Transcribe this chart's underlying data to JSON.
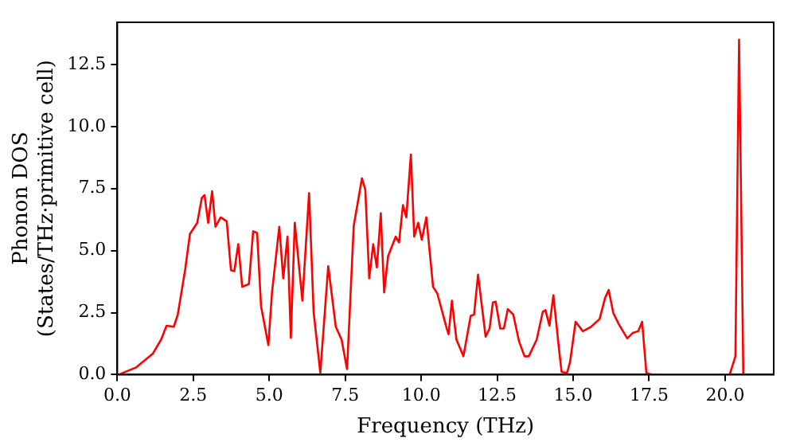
{
  "chart_data": {
    "type": "line",
    "xlabel": "Frequency (THz)",
    "ylabel": "Phonon DOS\n(States/THz·primitive cell)",
    "x": [
      0.04,
      0.62,
      1.17,
      1.44,
      1.62,
      1.86,
      1.99,
      2.23,
      2.39,
      2.63,
      2.78,
      2.87,
      2.99,
      3.12,
      3.23,
      3.4,
      3.6,
      3.74,
      3.85,
      3.98,
      4.11,
      4.33,
      4.47,
      4.6,
      4.73,
      4.97,
      5.09,
      5.33,
      5.46,
      5.6,
      5.71,
      5.84,
      6.09,
      6.31,
      6.46,
      6.68,
      6.94,
      7.19,
      7.38,
      7.56,
      7.78,
      8.05,
      8.16,
      8.29,
      8.42,
      8.54,
      8.67,
      8.78,
      8.91,
      9.16,
      9.27,
      9.4,
      9.51,
      9.66,
      9.77,
      9.9,
      10.02,
      10.17,
      10.39,
      10.53,
      10.84,
      10.9,
      11.01,
      11.16,
      11.39,
      11.63,
      11.74,
      11.87,
      12.12,
      12.25,
      12.36,
      12.45,
      12.6,
      12.72,
      12.85,
      13.03,
      13.22,
      13.4,
      13.54,
      13.8,
      14.0,
      14.09,
      14.22,
      14.35,
      14.53,
      14.62,
      14.8,
      14.9,
      15.08,
      15.32,
      15.59,
      15.87,
      16.05,
      16.17,
      16.32,
      16.5,
      16.78,
      16.96,
      17.14,
      17.27,
      17.41,
      17.6,
      20.15,
      20.34,
      20.46,
      20.6
    ],
    "series": [
      {
        "color": "#ff0000",
        "values": [
          0,
          0.29,
          0.85,
          1.41,
          1.97,
          1.93,
          2.42,
          4.21,
          5.67,
          6.12,
          7.12,
          7.24,
          6.12,
          7.39,
          5.96,
          6.34,
          6.18,
          4.21,
          4.17,
          5.26,
          3.54,
          3.65,
          5.78,
          5.71,
          2.76,
          1.19,
          3.31,
          5.96,
          3.88,
          5.56,
          1.48,
          6.12,
          2.98,
          7.31,
          2.53,
          0.07,
          4.37,
          1.93,
          1.41,
          0.22,
          6.0,
          7.91,
          7.46,
          3.88,
          5.26,
          4.32,
          6.5,
          3.31,
          4.77,
          5.56,
          5.33,
          6.83,
          6.34,
          8.87,
          5.56,
          6.12,
          5.44,
          6.34,
          3.54,
          3.27,
          1.86,
          1.63,
          2.98,
          1.41,
          0.74,
          2.37,
          2.42,
          4.03,
          1.53,
          1.86,
          2.91,
          2.94,
          1.86,
          1.86,
          2.64,
          2.42,
          1.34,
          0.74,
          0.74,
          1.41,
          2.53,
          2.6,
          1.97,
          3.2,
          1.08,
          0.11,
          0.07,
          0.52,
          2.13,
          1.75,
          1.93,
          2.24,
          3.09,
          3.41,
          2.49,
          2.04,
          1.46,
          1.68,
          1.75,
          2.13,
          0.07,
          0,
          0,
          0.74,
          13.5,
          0
        ]
      }
    ],
    "xlim": [
      0,
      21.6
    ],
    "ylim": [
      0,
      14.2
    ],
    "xticks": [
      {
        "value": 0,
        "label": "0.0"
      },
      {
        "value": 2.5,
        "label": "2.5"
      },
      {
        "value": 5,
        "label": "5.0"
      },
      {
        "value": 7.5,
        "label": "7.5"
      },
      {
        "value": 10,
        "label": "10.0"
      },
      {
        "value": 12.5,
        "label": "12.5"
      },
      {
        "value": 15,
        "label": "15.0"
      },
      {
        "value": 17.5,
        "label": "17.5"
      },
      {
        "value": 20,
        "label": "20.0"
      }
    ],
    "yticks": [
      {
        "value": 0,
        "label": "0.0"
      },
      {
        "value": 2.5,
        "label": "2.5"
      },
      {
        "value": 5,
        "label": "5.0"
      },
      {
        "value": 7.5,
        "label": "7.5"
      },
      {
        "value": 10,
        "label": "10.0"
      },
      {
        "value": 12.5,
        "label": "12.5"
      }
    ],
    "grid": false,
    "legend": false,
    "marker": "none",
    "line_style": "solid"
  }
}
